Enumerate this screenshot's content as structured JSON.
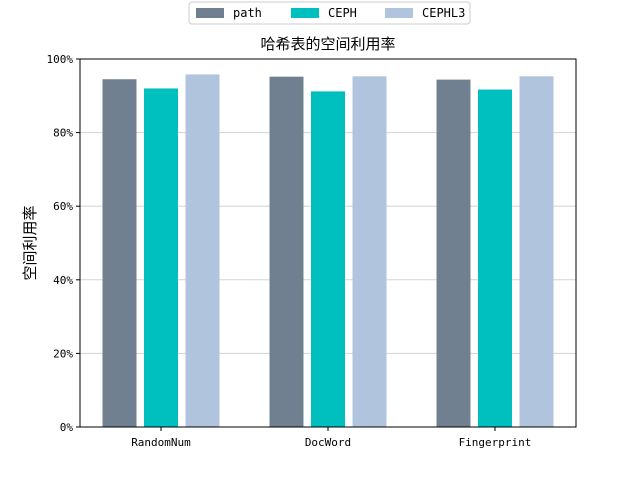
{
  "chart_data": {
    "type": "bar",
    "title": "哈希表的空间利用率",
    "xlabel": "",
    "ylabel": "空间利用率",
    "categories": [
      "RandomNum",
      "DocWord",
      "Fingerprint"
    ],
    "series": [
      {
        "name": "path",
        "color": "#708090",
        "values": [
          0.945,
          0.952,
          0.944
        ]
      },
      {
        "name": "CEPH",
        "color": "#00c0bf",
        "values": [
          0.92,
          0.912,
          0.917
        ]
      },
      {
        "name": "CEPHL3",
        "color": "#b0c4de",
        "values": [
          0.958,
          0.953,
          0.953
        ]
      }
    ],
    "ylim": [
      0,
      1
    ],
    "yticks": [
      0,
      0.2,
      0.4,
      0.6,
      0.8,
      1.0
    ],
    "ytick_labels": [
      "0%",
      "20%",
      "40%",
      "60%",
      "80%",
      "100%"
    ],
    "grid": "horizontal",
    "legend_position": "top-center"
  }
}
